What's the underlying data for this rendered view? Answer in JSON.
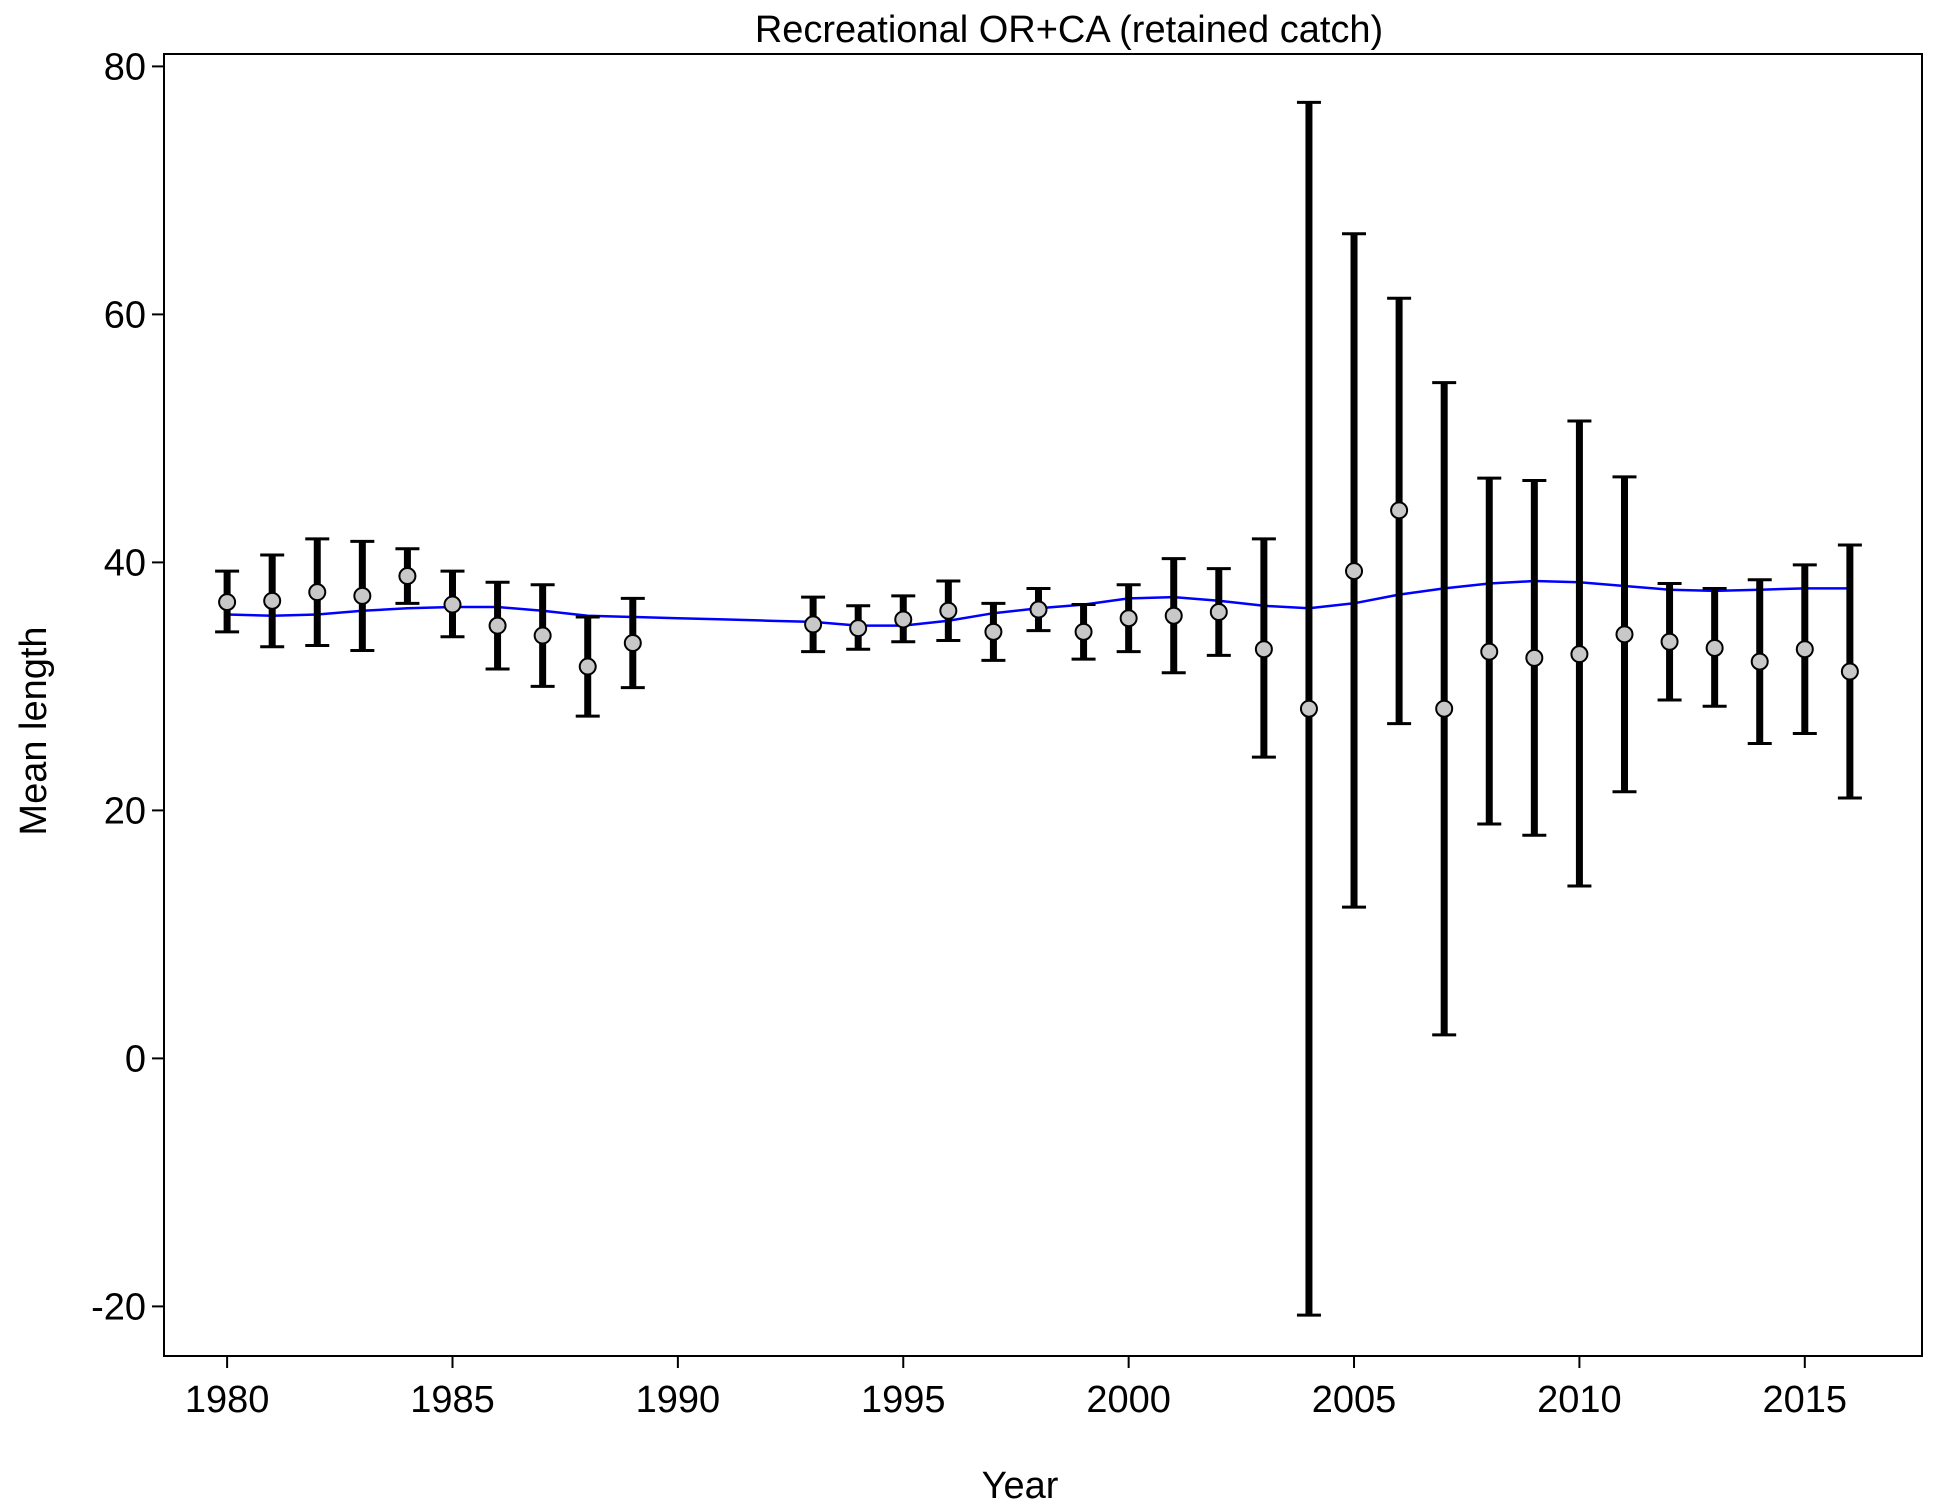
{
  "chart_data": {
    "type": "line",
    "title": "Recreational OR+CA (retained catch)",
    "xlabel": "Year",
    "ylabel": "Mean length",
    "xlim": [
      1978.6,
      2017.6
    ],
    "ylim": [
      -24,
      81
    ],
    "x_ticks": [
      1980,
      1985,
      1990,
      1995,
      2000,
      2005,
      2010,
      2015
    ],
    "y_ticks": [
      -20,
      0,
      20,
      40,
      60,
      80
    ],
    "x_tick_labels": [
      "1980",
      "1985",
      "1990",
      "1995",
      "2000",
      "2005",
      "2010",
      "2015"
    ],
    "y_tick_labels": [
      "-20",
      "0",
      "20",
      "40",
      "60",
      "80"
    ],
    "grid": false,
    "colors": {
      "errorbar": "#000000",
      "point_fill": "#c8c8c8",
      "point_stroke": "#000000",
      "expected_line": "#0000ff",
      "frame": "#000000"
    },
    "observed": [
      {
        "year": 1980,
        "mean": 36.8,
        "low": 34.4,
        "high": 39.3
      },
      {
        "year": 1981,
        "mean": 36.9,
        "low": 33.2,
        "high": 40.6
      },
      {
        "year": 1982,
        "mean": 37.6,
        "low": 33.3,
        "high": 41.9
      },
      {
        "year": 1983,
        "mean": 37.3,
        "low": 32.9,
        "high": 41.7
      },
      {
        "year": 1984,
        "mean": 38.9,
        "low": 36.7,
        "high": 41.1
      },
      {
        "year": 1985,
        "mean": 36.6,
        "low": 34.0,
        "high": 39.3
      },
      {
        "year": 1986,
        "mean": 34.9,
        "low": 31.4,
        "high": 38.4
      },
      {
        "year": 1987,
        "mean": 34.1,
        "low": 30.0,
        "high": 38.2
      },
      {
        "year": 1988,
        "mean": 31.6,
        "low": 27.6,
        "high": 35.6
      },
      {
        "year": 1989,
        "mean": 33.5,
        "low": 29.9,
        "high": 37.1
      },
      {
        "year": 1993,
        "mean": 35.0,
        "low": 32.8,
        "high": 37.2
      },
      {
        "year": 1994,
        "mean": 34.7,
        "low": 33.0,
        "high": 36.5
      },
      {
        "year": 1995,
        "mean": 35.4,
        "low": 33.6,
        "high": 37.3
      },
      {
        "year": 1996,
        "mean": 36.1,
        "low": 33.7,
        "high": 38.5
      },
      {
        "year": 1997,
        "mean": 34.4,
        "low": 32.1,
        "high": 36.7
      },
      {
        "year": 1998,
        "mean": 36.2,
        "low": 34.5,
        "high": 37.9
      },
      {
        "year": 1999,
        "mean": 34.4,
        "low": 32.2,
        "high": 36.6
      },
      {
        "year": 2000,
        "mean": 35.5,
        "low": 32.8,
        "high": 38.2
      },
      {
        "year": 2001,
        "mean": 35.7,
        "low": 31.1,
        "high": 40.3
      },
      {
        "year": 2002,
        "mean": 36.0,
        "low": 32.5,
        "high": 39.5
      },
      {
        "year": 2003,
        "mean": 33.0,
        "low": 24.3,
        "high": 41.9
      },
      {
        "year": 2004,
        "mean": 28.2,
        "low": -20.7,
        "high": 77.1
      },
      {
        "year": 2005,
        "mean": 39.3,
        "low": 12.2,
        "high": 66.5
      },
      {
        "year": 2006,
        "mean": 44.2,
        "low": 27.0,
        "high": 61.3
      },
      {
        "year": 2007,
        "mean": 28.2,
        "low": 1.9,
        "high": 54.5
      },
      {
        "year": 2008,
        "mean": 32.8,
        "low": 18.9,
        "high": 46.8
      },
      {
        "year": 2009,
        "mean": 32.3,
        "low": 18.0,
        "high": 46.6
      },
      {
        "year": 2010,
        "mean": 32.6,
        "low": 13.9,
        "high": 51.4
      },
      {
        "year": 2011,
        "mean": 34.2,
        "low": 21.5,
        "high": 46.9
      },
      {
        "year": 2012,
        "mean": 33.6,
        "low": 28.9,
        "high": 38.3
      },
      {
        "year": 2013,
        "mean": 33.1,
        "low": 28.4,
        "high": 37.9
      },
      {
        "year": 2014,
        "mean": 32.0,
        "low": 25.4,
        "high": 38.6
      },
      {
        "year": 2015,
        "mean": 33.0,
        "low": 26.2,
        "high": 39.8
      },
      {
        "year": 2016,
        "mean": 31.2,
        "low": 21.0,
        "high": 41.4
      }
    ],
    "expected": [
      {
        "year": 1980,
        "value": 35.8
      },
      {
        "year": 1981,
        "value": 35.7
      },
      {
        "year": 1982,
        "value": 35.8
      },
      {
        "year": 1983,
        "value": 36.1
      },
      {
        "year": 1984,
        "value": 36.3
      },
      {
        "year": 1985,
        "value": 36.4
      },
      {
        "year": 1986,
        "value": 36.4
      },
      {
        "year": 1987,
        "value": 36.1
      },
      {
        "year": 1988,
        "value": 35.7
      },
      {
        "year": 1989,
        "value": 35.6
      },
      {
        "year": 1990,
        "value": 35.5
      },
      {
        "year": 1991,
        "value": 35.4
      },
      {
        "year": 1992,
        "value": 35.3
      },
      {
        "year": 1993,
        "value": 35.2
      },
      {
        "year": 1994,
        "value": 34.9
      },
      {
        "year": 1995,
        "value": 34.9
      },
      {
        "year": 1996,
        "value": 35.3
      },
      {
        "year": 1997,
        "value": 35.9
      },
      {
        "year": 1998,
        "value": 36.3
      },
      {
        "year": 1999,
        "value": 36.6
      },
      {
        "year": 2000,
        "value": 37.1
      },
      {
        "year": 2001,
        "value": 37.2
      },
      {
        "year": 2002,
        "value": 36.9
      },
      {
        "year": 2003,
        "value": 36.5
      },
      {
        "year": 2004,
        "value": 36.3
      },
      {
        "year": 2005,
        "value": 36.7
      },
      {
        "year": 2006,
        "value": 37.4
      },
      {
        "year": 2007,
        "value": 37.9
      },
      {
        "year": 2008,
        "value": 38.3
      },
      {
        "year": 2009,
        "value": 38.5
      },
      {
        "year": 2010,
        "value": 38.4
      },
      {
        "year": 2011,
        "value": 38.1
      },
      {
        "year": 2012,
        "value": 37.8
      },
      {
        "year": 2013,
        "value": 37.7
      },
      {
        "year": 2014,
        "value": 37.8
      },
      {
        "year": 2015,
        "value": 37.9
      },
      {
        "year": 2016,
        "value": 37.9
      }
    ]
  }
}
